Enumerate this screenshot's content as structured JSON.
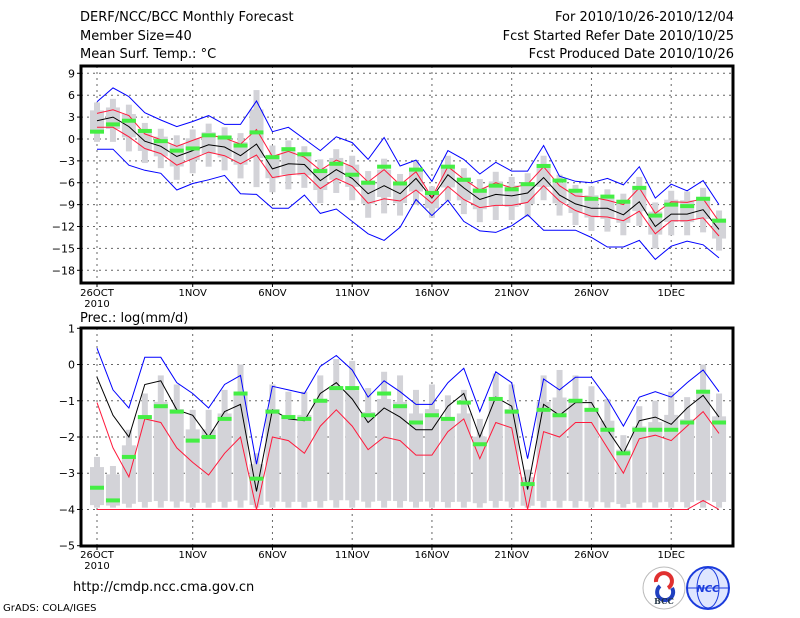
{
  "header": {
    "title": "DERF/NCC/BCC Monthly Forecast",
    "member_size": "Member Size=40",
    "variable": "Mean Surf. Temp.: °C",
    "period": "For 2010/10/26-2010/12/04",
    "start_date": "Fcst Started Refer Date 2010/10/25",
    "produced_date": "Fcst Produced Date 2010/10/26"
  },
  "footer": {
    "url": "http://cmdp.ncc.cma.gov.cn",
    "grads": "GrADS: COLA/IGES",
    "logo_bcc": "BCC",
    "logo_ncc": "NCC"
  },
  "colors": {
    "mean": "#000000",
    "spread": "#ff1a3c",
    "extreme": "#0000ff",
    "obs": "#44ee44",
    "box": "#d3d3d8"
  },
  "chart_data": [
    {
      "type": "line",
      "title": "Mean Surf. Temp.: °C",
      "xtick_labels": [
        "26OCT",
        "1NOV",
        "6NOV",
        "11NOV",
        "16NOV",
        "21NOV",
        "26NOV",
        "1DEC"
      ],
      "xtick_days": [
        0,
        6,
        11,
        16,
        21,
        26,
        31,
        36
      ],
      "year_label": "2010",
      "ylim": [
        -20,
        10
      ],
      "yticks": [
        9,
        6,
        3,
        0,
        -3,
        -6,
        -9,
        -12,
        -15,
        -18
      ],
      "days": 40,
      "series": [
        {
          "name": "mean",
          "values": [
            2.5,
            3.0,
            1.7,
            -0.3,
            -1.0,
            -2.4,
            -1.6,
            -0.8,
            -1.1,
            -2.3,
            -0.7,
            -4.1,
            -3.4,
            -3.5,
            -5.7,
            -4.2,
            -5.4,
            -7.5,
            -6.4,
            -7.5,
            -5.4,
            -8.1,
            -4.9,
            -6.7,
            -8.3,
            -7.6,
            -7.8,
            -7.4,
            -5.3,
            -7.7,
            -8.9,
            -9.5,
            -9.5,
            -10.4,
            -8.6,
            -12.0,
            -10.3,
            -10.3,
            -9.7,
            -12.4
          ]
        },
        {
          "name": "upper_spread",
          "values": [
            3.5,
            4.0,
            3.2,
            0.7,
            -0.1,
            -1.0,
            -0.2,
            0.6,
            0.1,
            -0.7,
            1.3,
            -2.4,
            -1.7,
            -2.5,
            -4.3,
            -2.9,
            -3.8,
            -5.9,
            -4.2,
            -6.3,
            -4.5,
            -8.0,
            -3.8,
            -5.5,
            -7.0,
            -6.0,
            -6.7,
            -6.2,
            -3.8,
            -6.4,
            -7.8,
            -8.0,
            -8.4,
            -9.0,
            -6.7,
            -10.2,
            -8.6,
            -8.7,
            -8.2,
            -11.3
          ]
        },
        {
          "name": "lower_spread",
          "values": [
            1.6,
            1.6,
            0.3,
            -1.3,
            -2.0,
            -3.6,
            -2.7,
            -1.8,
            -2.3,
            -3.4,
            -2.2,
            -5.3,
            -4.9,
            -4.7,
            -6.8,
            -5.4,
            -6.4,
            -8.8,
            -8.2,
            -8.5,
            -7.0,
            -8.8,
            -6.5,
            -8.3,
            -9.4,
            -9.1,
            -9.1,
            -8.7,
            -6.4,
            -8.5,
            -9.8,
            -10.6,
            -10.7,
            -11.2,
            -9.9,
            -13.0,
            -11.2,
            -11.2,
            -10.8,
            -13.3
          ]
        },
        {
          "name": "max",
          "values": [
            5.1,
            7.0,
            5.8,
            3.6,
            2.6,
            1.7,
            2.4,
            3.2,
            2.0,
            2.0,
            5.2,
            1.0,
            1.6,
            0.0,
            -1.6,
            0.3,
            -0.5,
            -2.8,
            0.2,
            -3.7,
            -2.9,
            -5.8,
            -1.6,
            -2.8,
            -4.8,
            -3.2,
            -4.4,
            -4.4,
            -0.9,
            -5.1,
            -5.8,
            -6.0,
            -5.4,
            -6.3,
            -3.8,
            -8.1,
            -6.2,
            -7.1,
            -5.7,
            -9.0
          ]
        },
        {
          "name": "min",
          "values": [
            -1.4,
            -1.4,
            -3.6,
            -4.3,
            -4.7,
            -7.0,
            -6.1,
            -5.6,
            -5.0,
            -7.5,
            -7.6,
            -9.5,
            -9.5,
            -7.7,
            -10.2,
            -9.6,
            -11.3,
            -13.0,
            -13.9,
            -12.1,
            -8.3,
            -10.5,
            -8.4,
            -11.3,
            -12.6,
            -12.8,
            -11.9,
            -10.4,
            -12.5,
            -12.5,
            -12.5,
            -13.5,
            -14.8,
            -14.8,
            -13.9,
            -16.5,
            -14.7,
            -14.0,
            -14.5,
            -16.3
          ]
        },
        {
          "name": "observed_ref",
          "values": [
            1.0,
            2.0,
            2.5,
            1.1,
            -0.3,
            -1.6,
            -1.3,
            0.5,
            0.2,
            -0.9,
            0.9,
            -2.5,
            -1.4,
            -2.1,
            -4.4,
            -3.4,
            -4.9,
            -6.0,
            -3.8,
            -6.1,
            -4.2,
            -7.4,
            -3.8,
            -5.6,
            -7.1,
            -6.4,
            -6.9,
            -6.2,
            -3.7,
            -5.7,
            -7.1,
            -8.2,
            -7.9,
            -8.6,
            -6.7,
            -10.5,
            -9.0,
            -9.2,
            -8.2,
            -11.2
          ]
        }
      ],
      "box_high": [
        5.0,
        5.5,
        4.7,
        2.2,
        1.4,
        0.5,
        1.3,
        2.1,
        1.6,
        0.8,
        6.7,
        -0.9,
        -0.2,
        -1.0,
        -2.8,
        -1.4,
        -2.3,
        -4.4,
        -2.7,
        -4.8,
        -3.0,
        -6.5,
        -2.3,
        -4.0,
        -5.5,
        -4.5,
        -5.2,
        -4.7,
        -2.3,
        -4.9,
        -6.3,
        -6.5,
        -6.9,
        -7.5,
        -5.2,
        -8.7,
        -7.1,
        -7.2,
        -6.7,
        -9.8
      ],
      "box_low": [
        -0.4,
        -0.4,
        -1.7,
        -3.3,
        -4.0,
        -5.6,
        -4.7,
        -3.8,
        -4.3,
        -5.4,
        -6.6,
        -7.3,
        -6.9,
        -6.7,
        -8.8,
        -7.4,
        -8.4,
        -10.8,
        -10.2,
        -10.5,
        -9.0,
        -10.8,
        -8.5,
        -10.3,
        -11.4,
        -11.1,
        -11.1,
        -10.7,
        -8.4,
        -10.5,
        -11.8,
        -12.6,
        -12.7,
        -13.2,
        -11.9,
        -15.0,
        -13.2,
        -13.2,
        -12.8,
        -15.3
      ]
    },
    {
      "type": "line",
      "title": "Prec.: log(mm/d)",
      "xtick_labels": [
        "26OCT",
        "1NOV",
        "6NOV",
        "11NOV",
        "16NOV",
        "21NOV",
        "26NOV",
        "1DEC"
      ],
      "xtick_days": [
        0,
        6,
        11,
        16,
        21,
        26,
        31,
        36
      ],
      "year_label": "2010",
      "ylim": [
        -5,
        1
      ],
      "yticks": [
        1,
        0,
        -1,
        -2,
        -3,
        -4,
        -5
      ],
      "days": 40,
      "series": [
        {
          "name": "mean",
          "values": [
            -0.35,
            -1.4,
            -2.0,
            -0.55,
            -0.45,
            -1.25,
            -1.4,
            -2.0,
            -1.3,
            -1.1,
            -3.5,
            -1.25,
            -1.5,
            -1.55,
            -0.8,
            -0.5,
            -0.95,
            -1.6,
            -1.2,
            -1.45,
            -1.8,
            -1.8,
            -1.15,
            -0.8,
            -2.0,
            -0.9,
            -1.15,
            -3.45,
            -1.1,
            -1.4,
            -1.05,
            -1.05,
            -1.8,
            -2.45,
            -1.55,
            -1.45,
            -1.65,
            -1.2,
            -0.85,
            -1.45
          ]
        },
        {
          "name": "max",
          "values": [
            0.45,
            -0.7,
            -1.2,
            0.2,
            0.2,
            -0.5,
            -0.8,
            -1.2,
            -0.55,
            -0.3,
            -2.75,
            -0.6,
            -0.7,
            -0.8,
            -0.05,
            0.25,
            -0.15,
            -0.9,
            -0.45,
            -0.75,
            -1.1,
            -1.1,
            -0.5,
            -0.1,
            -1.3,
            -0.2,
            -0.5,
            -2.6,
            -0.4,
            -0.7,
            -0.35,
            -0.35,
            -0.95,
            -1.7,
            -0.9,
            -0.75,
            -0.9,
            -0.5,
            -0.15,
            -0.75
          ]
        },
        {
          "name": "lower_spread",
          "values": [
            -1.05,
            -2.3,
            -3.1,
            -1.5,
            -1.6,
            -2.3,
            -2.7,
            -3.05,
            -2.45,
            -2.0,
            -4.0,
            -2.0,
            -2.1,
            -2.45,
            -1.7,
            -1.25,
            -1.7,
            -2.35,
            -2.0,
            -2.1,
            -2.5,
            -2.5,
            -1.85,
            -1.5,
            -2.6,
            -1.6,
            -1.75,
            -4.0,
            -1.85,
            -2.0,
            -1.6,
            -1.6,
            -2.3,
            -3.0,
            -2.05,
            -1.95,
            -2.1,
            -1.7,
            -1.3,
            -1.9
          ]
        },
        {
          "name": "min",
          "values": [
            -4,
            -4,
            -4,
            -4,
            -4,
            -4,
            -4,
            -4,
            -4,
            -4,
            -4,
            -4,
            -4,
            -4,
            -4,
            -4,
            -4,
            -4,
            -4,
            -4,
            -4,
            -4,
            -4,
            -4,
            -4,
            -4,
            -4,
            -4,
            -4,
            -4,
            -4,
            -4,
            -4,
            -4,
            -4,
            -4,
            -4,
            -4,
            -3.75,
            -4
          ]
        },
        {
          "name": "observed_ref",
          "values": [
            -3.4,
            -3.75,
            -2.55,
            -1.45,
            -1.15,
            -1.3,
            -2.1,
            -2.0,
            -1.5,
            -0.8,
            -3.15,
            -1.3,
            -1.45,
            -1.5,
            -1.0,
            -0.65,
            -0.65,
            -1.4,
            -0.8,
            -1.15,
            -1.6,
            -1.4,
            -1.5,
            -1.05,
            -2.2,
            -0.95,
            -1.3,
            -3.3,
            -1.25,
            -1.4,
            -1.0,
            -1.25,
            -1.8,
            -2.45,
            -1.8,
            -1.8,
            -1.8,
            -1.6,
            -0.75,
            -1.6
          ]
        }
      ],
      "box_high": [
        -2.55,
        -2.8,
        -1.8,
        -0.8,
        -0.3,
        -0.55,
        -1.25,
        -1.25,
        -0.7,
        0.0,
        -2.45,
        -0.55,
        -0.75,
        -0.75,
        -0.3,
        0.15,
        0.1,
        -0.65,
        -0.2,
        -0.3,
        -0.7,
        -0.55,
        -0.85,
        -0.7,
        -1.5,
        -0.25,
        -0.55,
        -2.9,
        -0.3,
        -0.15,
        -0.3,
        -0.6,
        -0.95,
        -1.95,
        -1.15,
        -1.0,
        -0.75,
        -0.9,
        0.0,
        -0.8
      ],
      "box_low": [
        -3.95,
        -3.95,
        -3.95,
        -3.95,
        -3.95,
        -3.95,
        -3.95,
        -3.95,
        -3.95,
        -3.95,
        -3.95,
        -3.95,
        -3.95,
        -3.95,
        -3.95,
        -3.95,
        -3.95,
        -3.95,
        -3.95,
        -3.95,
        -3.95,
        -3.95,
        -3.95,
        -3.95,
        -3.95,
        -3.95,
        -3.95,
        -3.95,
        -3.95,
        -3.95,
        -3.95,
        -3.95,
        -3.95,
        -3.95,
        -3.95,
        -3.95,
        -3.95,
        -3.95,
        -3.95,
        -3.95
      ]
    }
  ]
}
